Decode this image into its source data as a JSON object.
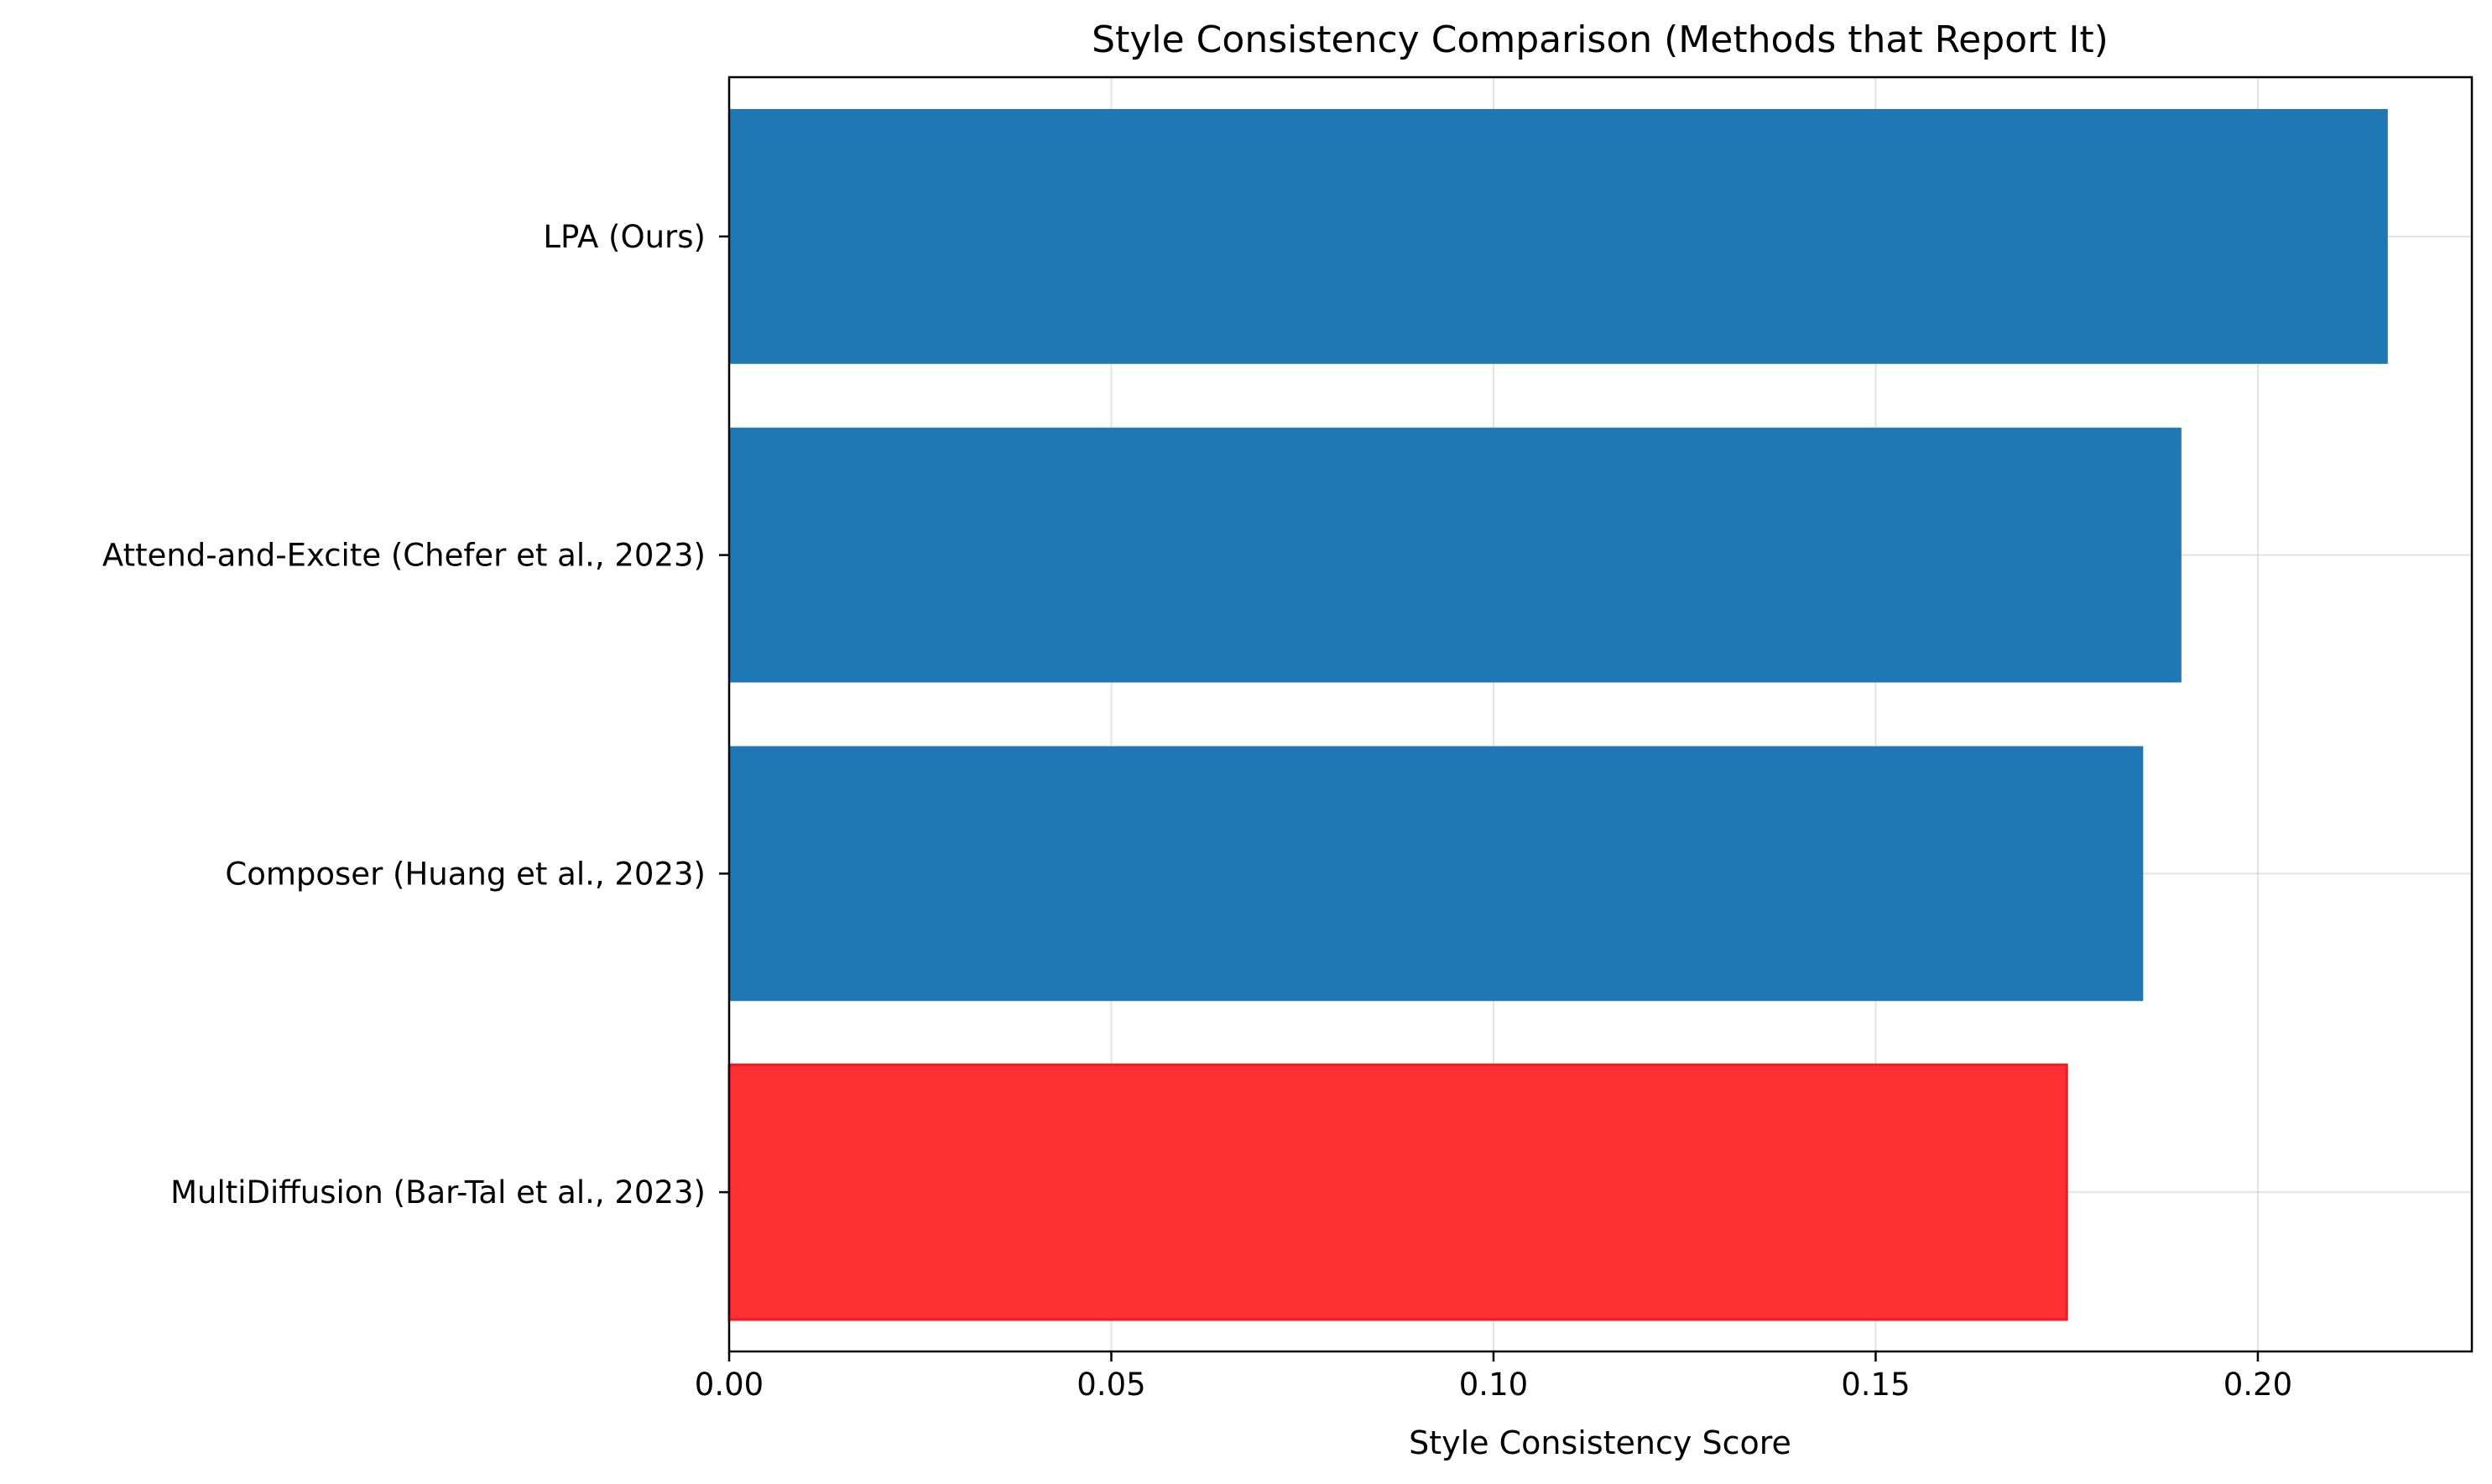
{
  "chart_data": {
    "type": "bar",
    "orientation": "horizontal",
    "title": "Style Consistency Comparison (Methods that Report It)",
    "xlabel": "Style Consistency Score",
    "ylabel": "",
    "categories": [
      "LPA (Ours)",
      "Attend-and-Excite (Chefer et al., 2023)",
      "Composer (Huang et al., 2023)",
      "MultiDiffusion (Bar-Tal et al., 2023)"
    ],
    "values": [
      0.217,
      0.19,
      0.185,
      0.175
    ],
    "bar_colors": [
      "#1f77b4",
      "#1f77b4",
      "#1f77b4",
      "#ff3033"
    ],
    "xlim": [
      0,
      0.228
    ],
    "xticks": [
      0.0,
      0.05,
      0.1,
      0.15,
      0.2
    ],
    "xtick_labels": [
      "0.00",
      "0.05",
      "0.10",
      "0.15",
      "0.20"
    ],
    "grid": true,
    "legend": false
  }
}
